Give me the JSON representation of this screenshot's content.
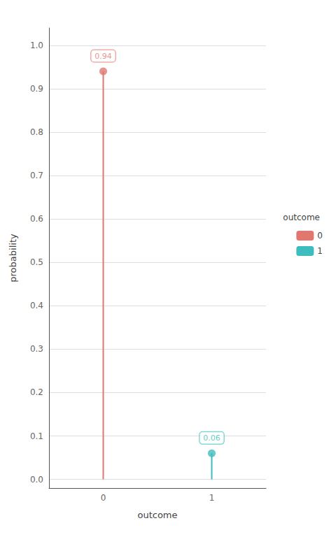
{
  "chart_data": {
    "type": "lollipop",
    "xlabel": "outcome",
    "ylabel": "probability",
    "categories": [
      "0",
      "1"
    ],
    "series": [
      {
        "name": "0",
        "color": "#E07870",
        "values": [
          0.94,
          null
        ]
      },
      {
        "name": "1",
        "color": "#3DBDBD",
        "values": [
          null,
          0.06
        ]
      }
    ],
    "ylim": [
      -0.02,
      1.04
    ],
    "yticks": [
      {
        "value": 0.0,
        "label": "0.0"
      },
      0.1,
      0.2,
      0.3,
      0.4,
      0.5,
      0.6,
      0.7,
      0.8,
      0.9,
      {
        "value": 1.0,
        "label": "1.0"
      }
    ],
    "grid": true,
    "data_labels": true,
    "legend": "right",
    "legend_title": "outcome"
  }
}
